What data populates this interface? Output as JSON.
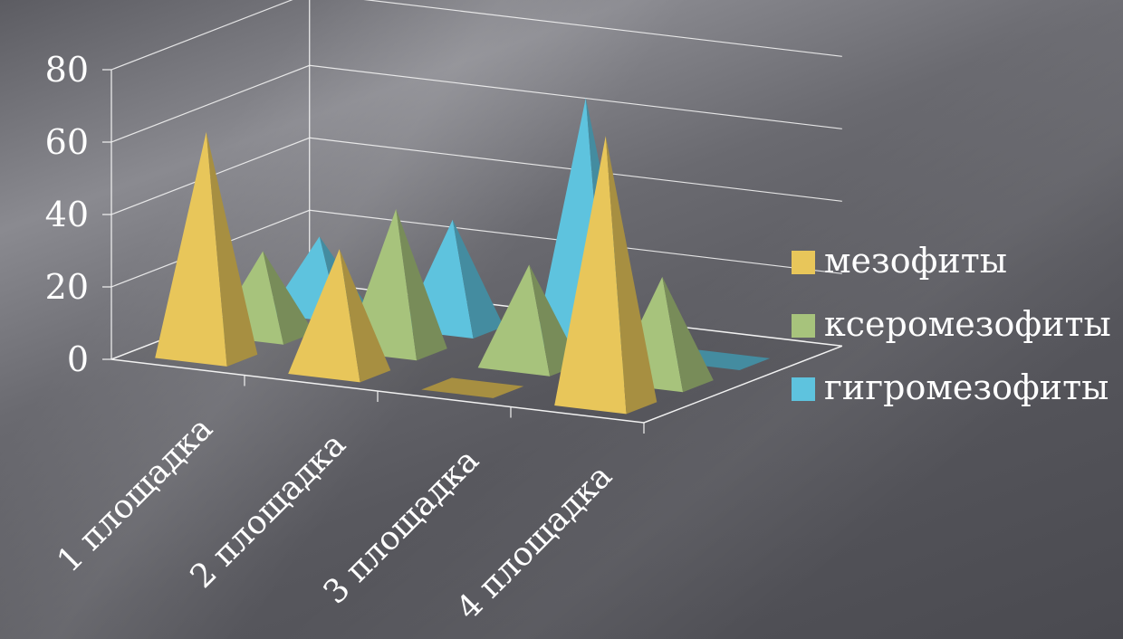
{
  "chart_data": {
    "type": "bar",
    "style": "3d-pyramid",
    "categories": [
      "1 площадка",
      "2 площадка",
      "3 площадка",
      "4 площадка"
    ],
    "series": [
      {
        "name": "мезофиты",
        "values": [
          62,
          34,
          0,
          74
        ]
      },
      {
        "name": "ксеромезофиты",
        "values": [
          23,
          39,
          28,
          29
        ]
      },
      {
        "name": "гигромезофиты",
        "values": [
          21,
          30,
          68,
          0
        ]
      }
    ],
    "ylim": [
      0,
      80
    ],
    "yticks": [
      "0",
      "20",
      "40",
      "60",
      "80"
    ],
    "grid": true,
    "legend_position": "right",
    "colors": {
      "мезофиты": "#E8C65A",
      "ксеромезофиты": "#A7C37C",
      "гигромезофиты": "#5EC3DE",
      "axis": "#f2f2f2",
      "grid": "#f2f2f2"
    }
  }
}
